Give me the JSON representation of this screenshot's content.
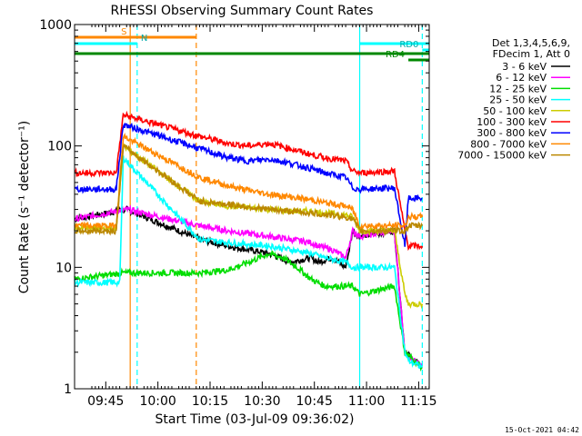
{
  "chart_data": {
    "type": "line",
    "title": "RHESSI Observing Summary Count Rates",
    "xlabel": "Start Time (03-Jul-09 09:36:02)",
    "ylabel": "Count Rate (s⁻¹ detector⁻¹)",
    "yscale": "log",
    "ylim": [
      1,
      1000
    ],
    "xlim_minutes": [
      0,
      102
    ],
    "y_ticks": [
      {
        "value": 1,
        "label": "1"
      },
      {
        "value": 10,
        "label": "10"
      },
      {
        "value": 100,
        "label": "100"
      },
      {
        "value": 1000,
        "label": "1000"
      }
    ],
    "x_ticks": [
      {
        "min": 8.97,
        "label": "09:45"
      },
      {
        "min": 23.97,
        "label": "10:00"
      },
      {
        "min": 38.97,
        "label": "10:15"
      },
      {
        "min": 53.97,
        "label": "10:30"
      },
      {
        "min": 68.97,
        "label": "10:45"
      },
      {
        "min": 83.97,
        "label": "11:00"
      },
      {
        "min": 98.97,
        "label": "11:15"
      }
    ],
    "legend_header": [
      "Det 1,3,4,5,6,9,",
      "FDecim 1, Att 0"
    ],
    "series": [
      {
        "name": "3 - 6 keV",
        "color": "#000000",
        "x": [
          0,
          15,
          36,
          44,
          56,
          62,
          65,
          68,
          70,
          74,
          78,
          80,
          82,
          92,
          95,
          100
        ],
        "y": [
          25,
          30,
          17,
          15,
          13,
          11,
          11.5,
          12,
          11,
          12,
          10,
          20,
          18,
          20,
          2,
          1.5
        ]
      },
      {
        "name": "6 - 12 keV",
        "color": "#ff00ff",
        "x": [
          0,
          15,
          36,
          44,
          56,
          62,
          65,
          68,
          70,
          74,
          78,
          80,
          82,
          92,
          95,
          100
        ],
        "y": [
          25,
          30,
          22,
          20,
          18,
          17,
          16.5,
          16,
          15,
          14,
          12,
          20,
          18,
          20,
          2,
          1.5
        ]
      },
      {
        "name": "12 - 25 keV",
        "color": "#00dd00",
        "x": [
          0,
          14,
          36,
          44,
          50,
          56,
          60,
          64,
          68,
          72,
          78,
          80,
          82,
          92,
          95,
          100
        ],
        "y": [
          8,
          9,
          9,
          9.5,
          11,
          13,
          12,
          10,
          8,
          7,
          7,
          7,
          6,
          7,
          2,
          1.5
        ]
      },
      {
        "name": "25 - 50 keV",
        "color": "#00ffff",
        "x": [
          0,
          13,
          14,
          36,
          44,
          56,
          62,
          68,
          72,
          78,
          80,
          82,
          92,
          95,
          96,
          100
        ],
        "y": [
          7.5,
          7.5,
          80,
          17,
          16,
          15,
          14,
          13,
          12,
          11,
          10,
          10,
          10,
          2,
          1.7,
          1.5
        ]
      },
      {
        "name": "50 - 100 keV",
        "color": "#cccc00",
        "x": [
          0,
          12,
          14,
          36,
          44,
          56,
          62,
          68,
          72,
          78,
          80,
          82,
          92,
          95,
          96,
          100
        ],
        "y": [
          21,
          21,
          100,
          35,
          32,
          30,
          29,
          29,
          28,
          27,
          26,
          20,
          20,
          6,
          5,
          5
        ]
      },
      {
        "name": "100 - 300 keV",
        "color": "#ff0000",
        "x": [
          0,
          12,
          14,
          36,
          44,
          50,
          56,
          62,
          68,
          72,
          78,
          80,
          82,
          92,
          95,
          96,
          100
        ],
        "y": [
          60,
          60,
          180,
          120,
          105,
          100,
          105,
          95,
          85,
          80,
          75,
          62,
          60,
          62,
          20,
          15,
          15
        ]
      },
      {
        "name": "300 - 800 keV",
        "color": "#0000ff",
        "x": [
          0,
          12,
          14,
          36,
          44,
          50,
          56,
          62,
          68,
          72,
          78,
          80,
          82,
          92,
          95,
          96,
          100
        ],
        "y": [
          44,
          44,
          150,
          95,
          80,
          75,
          78,
          72,
          65,
          60,
          55,
          45,
          44,
          45,
          15,
          37,
          37
        ]
      },
      {
        "name": "800 - 7000 keV",
        "color": "#ff8800",
        "x": [
          0,
          12,
          14,
          36,
          44,
          50,
          56,
          62,
          68,
          72,
          78,
          80,
          82,
          92,
          95,
          96,
          100
        ],
        "y": [
          22,
          22,
          120,
          55,
          47,
          43,
          40,
          38,
          36,
          34,
          32,
          30,
          22,
          22,
          22,
          26,
          26
        ]
      },
      {
        "name": "7000 - 15000 keV",
        "color": "#bb8800",
        "x": [
          0,
          12,
          14,
          36,
          44,
          56,
          68,
          78,
          80,
          82,
          92,
          95,
          96,
          100
        ],
        "y": [
          20,
          20,
          100,
          35,
          33,
          30,
          28,
          26,
          25,
          20,
          20,
          20,
          22,
          22
        ]
      }
    ],
    "flag_bars": [
      {
        "label": "S",
        "color": "#ff8800",
        "x0": 0,
        "x1": 35,
        "level": 3
      },
      {
        "label": "N",
        "color": "#00ffff",
        "x0": 0,
        "x1": 18,
        "level": 2
      },
      {
        "label": "",
        "color": "#00ffff",
        "x0": 82,
        "x1": 102,
        "level": 2
      },
      {
        "label": "RD0",
        "color": "#00ffff",
        "x0": 100,
        "x1": 102,
        "level": 1
      },
      {
        "label": "",
        "color": "#008800",
        "x0": 0,
        "x1": 102,
        "level": 0
      },
      {
        "label": "RD4",
        "color": "#008800",
        "x0": 96,
        "x1": 102,
        "level": -1
      }
    ],
    "vertical_markers": [
      {
        "x": 16,
        "color": "#ff8800",
        "dashed": false
      },
      {
        "x": 18,
        "color": "#00ffff",
        "dashed": true
      },
      {
        "x": 35,
        "color": "#ff8800",
        "dashed": true
      },
      {
        "x": 82,
        "color": "#00ffff",
        "dashed": false
      },
      {
        "x": 100,
        "color": "#00ffff",
        "dashed": true
      }
    ],
    "timestamp": "15-Oct-2021 04:42"
  }
}
